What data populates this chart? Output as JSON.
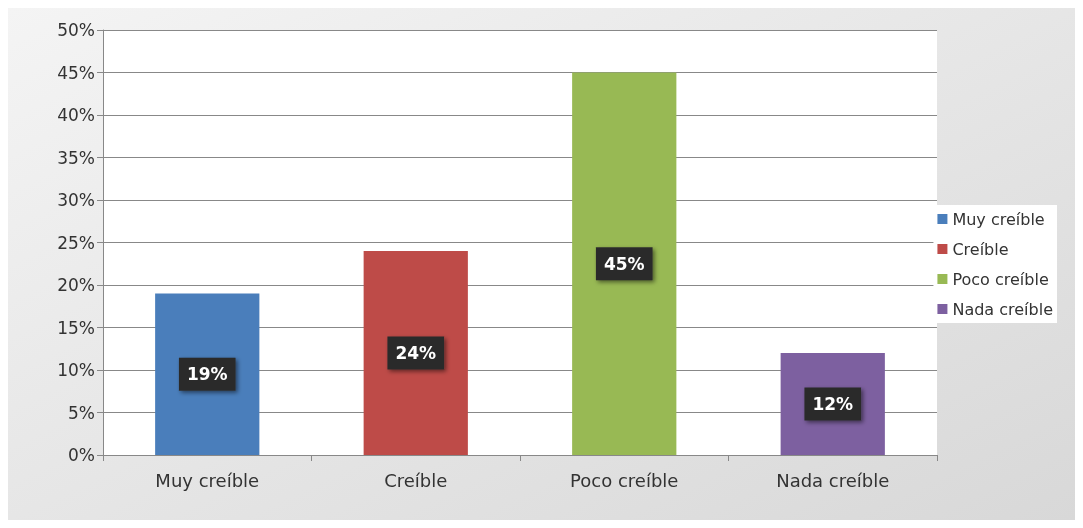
{
  "chart_data": {
    "type": "bar",
    "categories": [
      "Muy creíble",
      "Creíble",
      "Poco creíble",
      "Nada creíble"
    ],
    "series": [
      {
        "name": "Muy creíble",
        "color": "#4a7ebb",
        "values": [
          19,
          null,
          null,
          null
        ],
        "value_labels": [
          "19%",
          null,
          null,
          null
        ]
      },
      {
        "name": "Creíble",
        "color": "#be4b48",
        "values": [
          null,
          24,
          null,
          null
        ],
        "value_labels": [
          null,
          "24%",
          null,
          null
        ]
      },
      {
        "name": "Poco creíble",
        "color": "#98b954",
        "values": [
          null,
          null,
          45,
          null
        ],
        "value_labels": [
          null,
          null,
          "45%",
          null
        ]
      },
      {
        "name": "Nada creíble",
        "color": "#7d60a0",
        "values": [
          null,
          null,
          null,
          12
        ],
        "value_labels": [
          null,
          null,
          null,
          "12%"
        ]
      }
    ],
    "stacked": true,
    "ylim": [
      0,
      50
    ],
    "yticks": [
      {
        "value": 0,
        "label": "0%"
      },
      {
        "value": 5,
        "label": "5%"
      },
      {
        "value": 10,
        "label": "10%"
      },
      {
        "value": 15,
        "label": "15%"
      },
      {
        "value": 20,
        "label": "20%"
      },
      {
        "value": 25,
        "label": "25%"
      },
      {
        "value": 30,
        "label": "30%"
      },
      {
        "value": 35,
        "label": "35%"
      },
      {
        "value": 40,
        "label": "40%"
      },
      {
        "value": 45,
        "label": "45%"
      },
      {
        "value": 50,
        "label": "50%"
      }
    ],
    "grid": "y",
    "legend": "right"
  }
}
